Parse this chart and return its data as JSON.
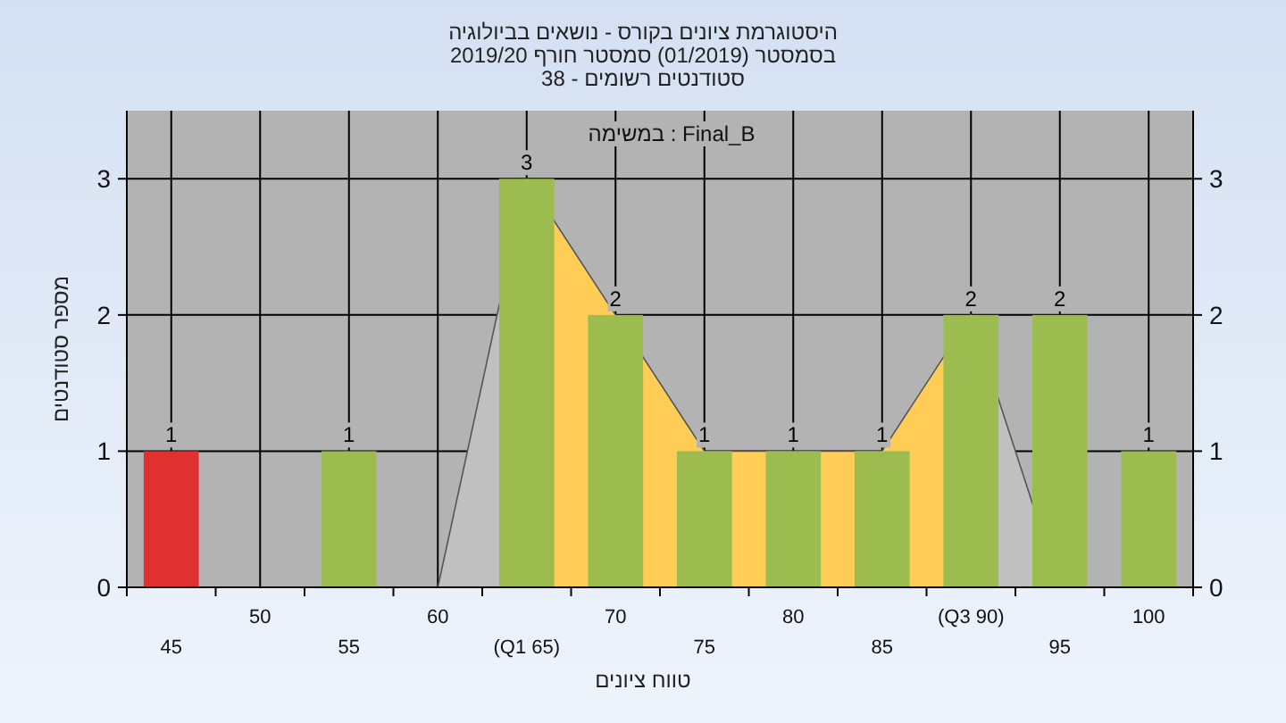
{
  "chart_data": {
    "type": "bar",
    "title": "היסטוגרמת ציונים בקורס - נושאים בביולוגיה",
    "subtitle": "בסמסטר  (01/2019)  סמסטר חורף 2019/20\nסטודנטים רשומים - 38",
    "xlabel": "טווח ציונים",
    "ylabel": "מספר סטודנטים",
    "annotations": [
      "במשימה : Final_B"
    ],
    "categories": [
      "45",
      "50",
      "55",
      "60",
      "(Q1 65)",
      "70",
      "75",
      "80",
      "85",
      "(Q3 90)",
      "95",
      "100"
    ],
    "series": [
      {
        "type": "area",
        "color": "#c0c0c0",
        "values": [
          null,
          null,
          null,
          0,
          3,
          null,
          null,
          null,
          null,
          2,
          0,
          null
        ]
      },
      {
        "type": "area",
        "color": "#ffcc55",
        "values": [
          null,
          null,
          null,
          null,
          3,
          2,
          1,
          1,
          1,
          2,
          null,
          null
        ]
      },
      {
        "colors": [
          "#e03030",
          "#9cbc50",
          "#9cbc50",
          "#9cbc50",
          "#9cbc50",
          "#9cbc50",
          "#9cbc50",
          "#9cbc50",
          "#9cbc50",
          "#9cbc50",
          "#9cbc50",
          "#9cbc50"
        ],
        "values": [
          1,
          0,
          1,
          0,
          3,
          2,
          1,
          1,
          1,
          2,
          2,
          1
        ],
        "value_labels": [
          "1",
          null,
          "1",
          null,
          "3",
          "2",
          "1",
          "1",
          "1",
          "2",
          "2",
          "1"
        ]
      }
    ],
    "ylim": [
      0,
      3.5
    ],
    "yticks": [
      0,
      1,
      2,
      3
    ],
    "y2lim": [
      0,
      3.5
    ],
    "y2ticks": [
      0,
      1,
      2,
      3
    ],
    "grid": true
  }
}
